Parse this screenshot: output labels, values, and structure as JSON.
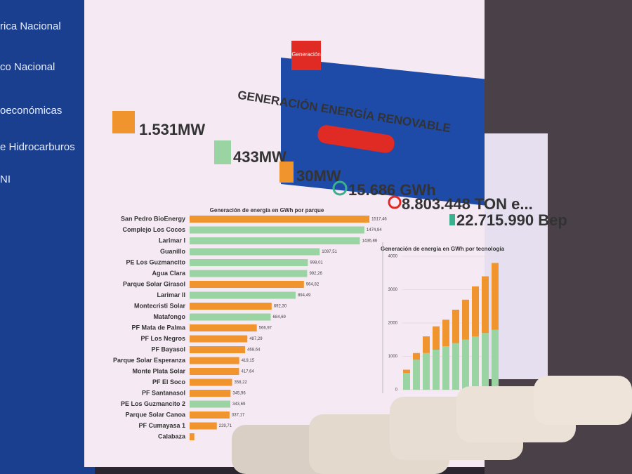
{
  "sidebar": [
    "rica Nacional",
    "co Nacional",
    "oeconómicas",
    "e Hidrocarburos",
    "NI"
  ],
  "tabs": [
    "Generación"
  ],
  "title": "GENERACIÓN ENERGÍA RENOVABLE",
  "kpis": [
    "1.531MW",
    "433MW",
    "30MW",
    "15.686 GWh",
    "8.803.448 TON e...",
    "22.715.990 Bep"
  ],
  "park_chart": {
    "type": "bar",
    "orientation": "horizontal",
    "title": "Generación de energía en GWh por parque",
    "categories": [
      "San Pedro BioEnergy",
      "Complejo Los Cocos",
      "Larimar I",
      "Guanillo",
      "PE Los Guzmancito",
      "Agua Clara",
      "Parque Solar Girasol",
      "Larimar II",
      "Montecristi Solar",
      "Matafongo",
      "PF Mata de Palma",
      "PF Los Negros",
      "PF Bayasol",
      "Parque Solar Esperanza",
      "Monte Plata Solar",
      "PF El Soco",
      "PF Santanasol",
      "PE Los Guzmancito 2",
      "Parque Solar Canoa",
      "PF Cumayasa 1",
      "Calabaza"
    ],
    "values": [
      1517.46,
      1474.94,
      1436.86,
      1097.51,
      998.01,
      992.26,
      964.82,
      894.49,
      692.3,
      684.69,
      566.97,
      487.29,
      468.64,
      419.15,
      417.64,
      358.22,
      345.96,
      343.69,
      337.17,
      229.71,
      40
    ],
    "value_labels": [
      "1517,46",
      "1474,94",
      "1436,86",
      "1097,51",
      "998,01",
      "992,26",
      "964,82",
      "894,49",
      "692,30",
      "684,69",
      "566,97",
      "487,29",
      "468,64",
      "419,15",
      "417,64",
      "358,22",
      "345,96",
      "343,69",
      "337,17",
      "229,71",
      null
    ],
    "colors": [
      "#f0952e",
      "#9ad4a2",
      "#9ad4a2",
      "#9ad4a2",
      "#9ad4a2",
      "#9ad4a2",
      "#f0952e",
      "#9ad4a2",
      "#f0952e",
      "#9ad4a2",
      "#f0952e",
      "#f0952e",
      "#f0952e",
      "#f0952e",
      "#f0952e",
      "#f0952e",
      "#f0952e",
      "#9ad4a2",
      "#f0952e",
      "#f0952e",
      "#f0952e"
    ],
    "xlim": [
      0,
      1600
    ]
  },
  "tech_chart": {
    "type": "bar",
    "stacked": true,
    "title": "Generación de energía en GWh por tecnología",
    "categories": [
      null,
      null,
      null,
      null,
      null,
      null,
      null,
      null,
      null,
      null
    ],
    "series": [
      {
        "color": "#9ad4a2",
        "values": [
          500,
          900,
          1100,
          1200,
          1300,
          1400,
          1500,
          1600,
          1700,
          1800
        ]
      },
      {
        "color": "#f0952e",
        "values": [
          100,
          200,
          500,
          700,
          800,
          1000,
          1200,
          1500,
          1700,
          2000
        ]
      }
    ],
    "ylim": [
      0,
      4000
    ],
    "yticks": [
      0,
      1000,
      2000,
      3000,
      4000
    ]
  }
}
